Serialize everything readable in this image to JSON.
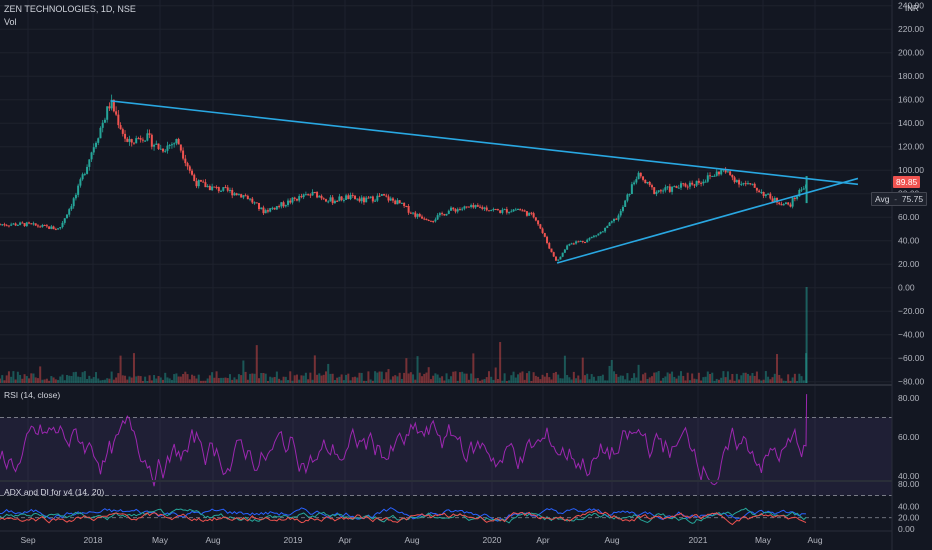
{
  "header": {
    "symbol_line": "ZEN TECHNOLOGIES, 1D, NSE",
    "vol_label": "Vol",
    "currency": "INR"
  },
  "price_badges": {
    "last": "89.85",
    "avg_label": "Avg",
    "avg_value": "75.75"
  },
  "colors": {
    "background": "#131722",
    "up": "#26a69a",
    "down": "#ef5350",
    "trendline": "#29a7e1",
    "rsi": "#9c27b0",
    "adx": "#2962ff",
    "di_plus": "#26a69a",
    "di_minus": "#ef5350"
  },
  "rsi_pane": {
    "title": "RSI (14, close)",
    "ticks": [
      "80.00",
      "60.00",
      "40.00"
    ]
  },
  "adx_pane": {
    "title": "ADX and DI for v4 (14, 20)",
    "ticks": [
      "80.00",
      "40.00",
      "20.00",
      "0.00"
    ]
  },
  "chart_data": {
    "type": "candlestick",
    "title": "ZEN TECHNOLOGIES, 1D, NSE",
    "x_ticks": [
      "Sep",
      "2018",
      "May",
      "Aug",
      "2019",
      "Apr",
      "Aug",
      "2020",
      "Apr",
      "Aug",
      "2021",
      "May",
      "Aug"
    ],
    "y_ticks": [
      "240.00",
      "220.00",
      "200.00",
      "180.00",
      "160.00",
      "140.00",
      "120.00",
      "100.00",
      "80.00",
      "60.00",
      "40.00",
      "20.00",
      "0.00",
      "−20.00",
      "−40.00",
      "−60.00",
      "−80.00"
    ],
    "ylim": [
      -80,
      240
    ],
    "price_path": [
      {
        "x": "2017-08",
        "y": 54
      },
      {
        "x": "2017-09",
        "y": 52
      },
      {
        "x": "2017-10",
        "y": 50
      },
      {
        "x": "2017-11",
        "y": 80
      },
      {
        "x": "2017-12",
        "y": 120
      },
      {
        "x": "2018-01",
        "y": 158
      },
      {
        "x": "2018-02",
        "y": 122
      },
      {
        "x": "2018-03",
        "y": 130
      },
      {
        "x": "2018-04",
        "y": 118
      },
      {
        "x": "2018-05",
        "y": 125
      },
      {
        "x": "2018-06",
        "y": 90
      },
      {
        "x": "2018-07",
        "y": 85
      },
      {
        "x": "2018-08",
        "y": 82
      },
      {
        "x": "2018-09",
        "y": 78
      },
      {
        "x": "2018-10",
        "y": 65
      },
      {
        "x": "2018-11",
        "y": 70
      },
      {
        "x": "2018-12",
        "y": 76
      },
      {
        "x": "2019-01",
        "y": 80
      },
      {
        "x": "2019-02",
        "y": 74
      },
      {
        "x": "2019-03",
        "y": 77
      },
      {
        "x": "2019-04",
        "y": 74
      },
      {
        "x": "2019-05",
        "y": 78
      },
      {
        "x": "2019-06",
        "y": 72
      },
      {
        "x": "2019-07",
        "y": 62
      },
      {
        "x": "2019-08",
        "y": 58
      },
      {
        "x": "2019-09",
        "y": 66
      },
      {
        "x": "2019-10",
        "y": 68
      },
      {
        "x": "2019-11",
        "y": 68
      },
      {
        "x": "2019-12",
        "y": 65
      },
      {
        "x": "2020-01",
        "y": 67
      },
      {
        "x": "2020-02",
        "y": 60
      },
      {
        "x": "2020-03",
        "y": 30
      },
      {
        "x": "2020-03-25",
        "y": 22
      },
      {
        "x": "2020-04",
        "y": 38
      },
      {
        "x": "2020-05",
        "y": 40
      },
      {
        "x": "2020-06",
        "y": 48
      },
      {
        "x": "2020-07",
        "y": 62
      },
      {
        "x": "2020-08",
        "y": 96
      },
      {
        "x": "2020-09",
        "y": 82
      },
      {
        "x": "2020-10",
        "y": 84
      },
      {
        "x": "2020-11",
        "y": 88
      },
      {
        "x": "2020-12",
        "y": 92
      },
      {
        "x": "2021-01",
        "y": 100
      },
      {
        "x": "2021-02",
        "y": 90
      },
      {
        "x": "2021-03",
        "y": 85
      },
      {
        "x": "2021-04",
        "y": 75
      },
      {
        "x": "2021-05",
        "y": 70
      },
      {
        "x": "2021-06",
        "y": 89.85
      }
    ],
    "trendlines": [
      {
        "from": {
          "x": "2018-01",
          "y": 159
        },
        "to": {
          "x": "2021-09",
          "y": 88
        }
      },
      {
        "from": {
          "x": "2020-03-25",
          "y": 21
        },
        "to": {
          "x": "2021-09",
          "y": 93
        }
      }
    ],
    "last_price": 89.85,
    "avg_price": 75.75
  }
}
